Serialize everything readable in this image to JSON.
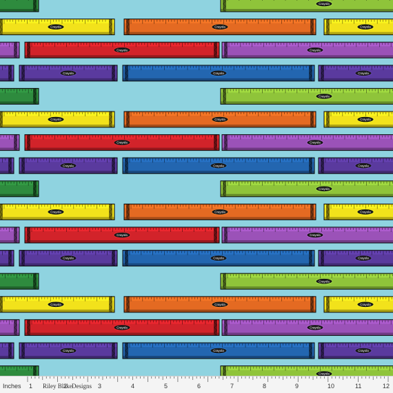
{
  "swatch": {
    "crayon_label": "Crayola",
    "colors": {
      "background": "#8fd3e0",
      "green": "#2e8b3e",
      "lime": "#8fc43a",
      "yellow": "#f2e21b",
      "orange": "#e46a22",
      "red": "#d2232a",
      "violet": "#9b52b8",
      "purple": "#5a3a9e",
      "blue": "#2366b0"
    },
    "row_pattern": [
      [
        "green",
        "lime"
      ],
      [
        "yellow",
        "orange",
        "yellow"
      ],
      [
        "violet",
        "red",
        "violet"
      ],
      [
        "purple",
        "blue",
        "purple"
      ]
    ]
  },
  "selvage": {
    "units_label": "Inches",
    "brand_left": "Riley Blake",
    "brand_right": "Designs",
    "numbers": [
      "1",
      "2",
      "3",
      "4",
      "5",
      "6",
      "7",
      "8",
      "9",
      "10",
      "11",
      "12"
    ]
  }
}
